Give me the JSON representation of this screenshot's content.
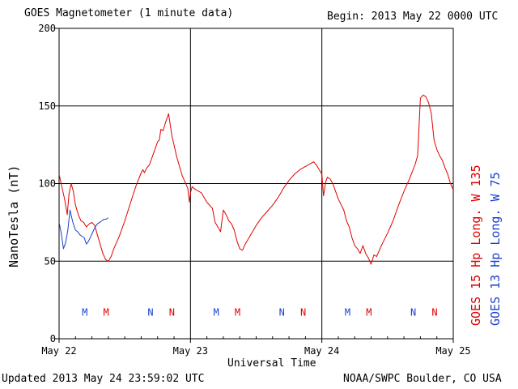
{
  "header": {
    "title": "GOES Magnetometer (1 minute data)",
    "begin": "Begin:  2013 May 22 0000 UTC"
  },
  "footer": {
    "updated": "Updated 2013 May 24 23:59:02 UTC",
    "credit": "NOAA/SWPC Boulder, CO USA"
  },
  "chart_data": {
    "type": "line",
    "title": "GOES Magnetometer (1 minute data)",
    "xlabel": "Universal Time",
    "ylabel": "NanoTesla (nT)",
    "ylim": [
      0,
      200
    ],
    "yticks": [
      0,
      50,
      100,
      150,
      200
    ],
    "xlim": [
      0,
      72
    ],
    "x_unit": "hours since 2013 May 22 0000 UTC",
    "xtick_hours": [
      0,
      24,
      48,
      72
    ],
    "xtick_labels": [
      "May 22",
      "May 23",
      "May 24",
      "May 25"
    ],
    "grid": true,
    "colors": {
      "goes15": "#e00000",
      "goes13": "#1a3fd0"
    },
    "series": [
      {
        "name": "GOES 15 Hp  Long. W 135",
        "color": "#e00000",
        "points": [
          [
            0,
            106
          ],
          [
            0.5,
            98
          ],
          [
            1,
            90
          ],
          [
            1.5,
            80
          ],
          [
            1.8,
            93
          ],
          [
            2.2,
            100
          ],
          [
            2.6,
            95
          ],
          [
            3,
            86
          ],
          [
            3.5,
            80
          ],
          [
            4,
            76
          ],
          [
            4.5,
            75
          ],
          [
            5,
            72
          ],
          [
            5.5,
            74
          ],
          [
            6,
            75
          ],
          [
            6.5,
            73
          ],
          [
            7,
            67
          ],
          [
            7.5,
            61
          ],
          [
            8,
            55
          ],
          [
            8.5,
            51
          ],
          [
            9,
            50
          ],
          [
            9.5,
            53
          ],
          [
            10,
            58
          ],
          [
            11,
            66
          ],
          [
            12,
            76
          ],
          [
            13,
            87
          ],
          [
            14,
            98
          ],
          [
            15,
            107
          ],
          [
            15.3,
            109
          ],
          [
            15.6,
            107
          ],
          [
            16,
            110
          ],
          [
            16.5,
            112
          ],
          [
            17,
            117
          ],
          [
            17.5,
            122
          ],
          [
            18,
            127
          ],
          [
            18.3,
            128
          ],
          [
            18.6,
            135
          ],
          [
            19,
            134
          ],
          [
            19.5,
            140
          ],
          [
            20,
            145
          ],
          [
            20.3,
            138
          ],
          [
            20.6,
            131
          ],
          [
            21,
            125
          ],
          [
            21.5,
            117
          ],
          [
            22,
            111
          ],
          [
            22.5,
            105
          ],
          [
            23,
            101
          ],
          [
            23.5,
            97
          ],
          [
            23.8,
            88
          ],
          [
            24,
            94
          ],
          [
            24.3,
            98
          ],
          [
            24.6,
            97
          ],
          [
            25,
            96
          ],
          [
            26,
            94
          ],
          [
            26.5,
            91
          ],
          [
            27,
            88
          ],
          [
            28,
            84
          ],
          [
            28.5,
            75
          ],
          [
            29,
            72
          ],
          [
            29.5,
            69
          ],
          [
            30,
            83
          ],
          [
            30.5,
            80
          ],
          [
            31,
            76
          ],
          [
            31.5,
            74
          ],
          [
            32,
            70
          ],
          [
            32.5,
            63
          ],
          [
            33,
            58
          ],
          [
            33.5,
            57
          ],
          [
            34,
            61
          ],
          [
            35,
            67
          ],
          [
            36,
            73
          ],
          [
            37,
            78
          ],
          [
            38,
            82
          ],
          [
            39,
            86
          ],
          [
            40,
            91
          ],
          [
            41,
            97
          ],
          [
            42,
            102
          ],
          [
            43,
            106
          ],
          [
            44,
            109
          ],
          [
            45,
            111
          ],
          [
            46,
            113
          ],
          [
            46.5,
            114
          ],
          [
            47,
            112
          ],
          [
            47.5,
            109
          ],
          [
            48,
            106
          ],
          [
            48.3,
            92
          ],
          [
            48.7,
            101
          ],
          [
            49,
            104
          ],
          [
            49.5,
            103
          ],
          [
            50,
            100
          ],
          [
            51,
            90
          ],
          [
            52,
            83
          ],
          [
            52.5,
            76
          ],
          [
            53,
            72
          ],
          [
            53.5,
            65
          ],
          [
            54,
            60
          ],
          [
            54.5,
            58
          ],
          [
            55,
            55
          ],
          [
            55.5,
            60
          ],
          [
            56,
            55
          ],
          [
            56.5,
            52
          ],
          [
            57,
            48
          ],
          [
            57.5,
            54
          ],
          [
            58,
            53
          ],
          [
            58.5,
            57
          ],
          [
            59,
            61
          ],
          [
            60,
            68
          ],
          [
            61,
            76
          ],
          [
            62,
            86
          ],
          [
            63,
            95
          ],
          [
            64,
            103
          ],
          [
            65,
            112
          ],
          [
            65.5,
            118
          ],
          [
            66,
            155
          ],
          [
            66.5,
            157
          ],
          [
            67,
            156
          ],
          [
            67.5,
            152
          ],
          [
            68,
            145
          ],
          [
            68.5,
            128
          ],
          [
            69,
            122
          ],
          [
            69.5,
            118
          ],
          [
            70,
            115
          ],
          [
            70.5,
            110
          ],
          [
            71,
            106
          ],
          [
            71.5,
            100
          ],
          [
            72,
            96
          ]
        ]
      },
      {
        "name": "GOES 13 Hp  Long. W 75",
        "color": "#1a3fd0",
        "points": [
          [
            0,
            75
          ],
          [
            0.4,
            68
          ],
          [
            0.8,
            58
          ],
          [
            1.2,
            62
          ],
          [
            1.6,
            70
          ],
          [
            2,
            83
          ],
          [
            2.3,
            78
          ],
          [
            2.6,
            74
          ],
          [
            3,
            70
          ],
          [
            3.4,
            69
          ],
          [
            3.8,
            67
          ],
          [
            4.2,
            66
          ],
          [
            4.6,
            65
          ],
          [
            5,
            61
          ],
          [
            5.4,
            63
          ],
          [
            5.8,
            66
          ],
          [
            6.2,
            69
          ],
          [
            6.6,
            72
          ],
          [
            7,
            74
          ],
          [
            7.4,
            75
          ],
          [
            7.8,
            76
          ],
          [
            8.2,
            77
          ],
          [
            8.6,
            77
          ],
          [
            9,
            78
          ]
        ]
      }
    ],
    "event_markers": [
      {
        "label": "M",
        "hour": 4.7,
        "color": "#1a3fd0"
      },
      {
        "label": "M",
        "hour": 8.6,
        "color": "#e00000"
      },
      {
        "label": "N",
        "hour": 16.7,
        "color": "#1a3fd0"
      },
      {
        "label": "N",
        "hour": 20.6,
        "color": "#e00000"
      },
      {
        "label": "M",
        "hour": 28.7,
        "color": "#1a3fd0"
      },
      {
        "label": "M",
        "hour": 32.6,
        "color": "#e00000"
      },
      {
        "label": "N",
        "hour": 40.7,
        "color": "#1a3fd0"
      },
      {
        "label": "N",
        "hour": 44.6,
        "color": "#e00000"
      },
      {
        "label": "M",
        "hour": 52.7,
        "color": "#1a3fd0"
      },
      {
        "label": "M",
        "hour": 56.6,
        "color": "#e00000"
      },
      {
        "label": "N",
        "hour": 64.7,
        "color": "#1a3fd0"
      },
      {
        "label": "N",
        "hour": 68.6,
        "color": "#e00000"
      }
    ],
    "event_marker_level": 17,
    "legend": [
      "GOES 15 Hp  Long. W 135",
      "GOES 13 Hp  Long. W 75"
    ]
  }
}
